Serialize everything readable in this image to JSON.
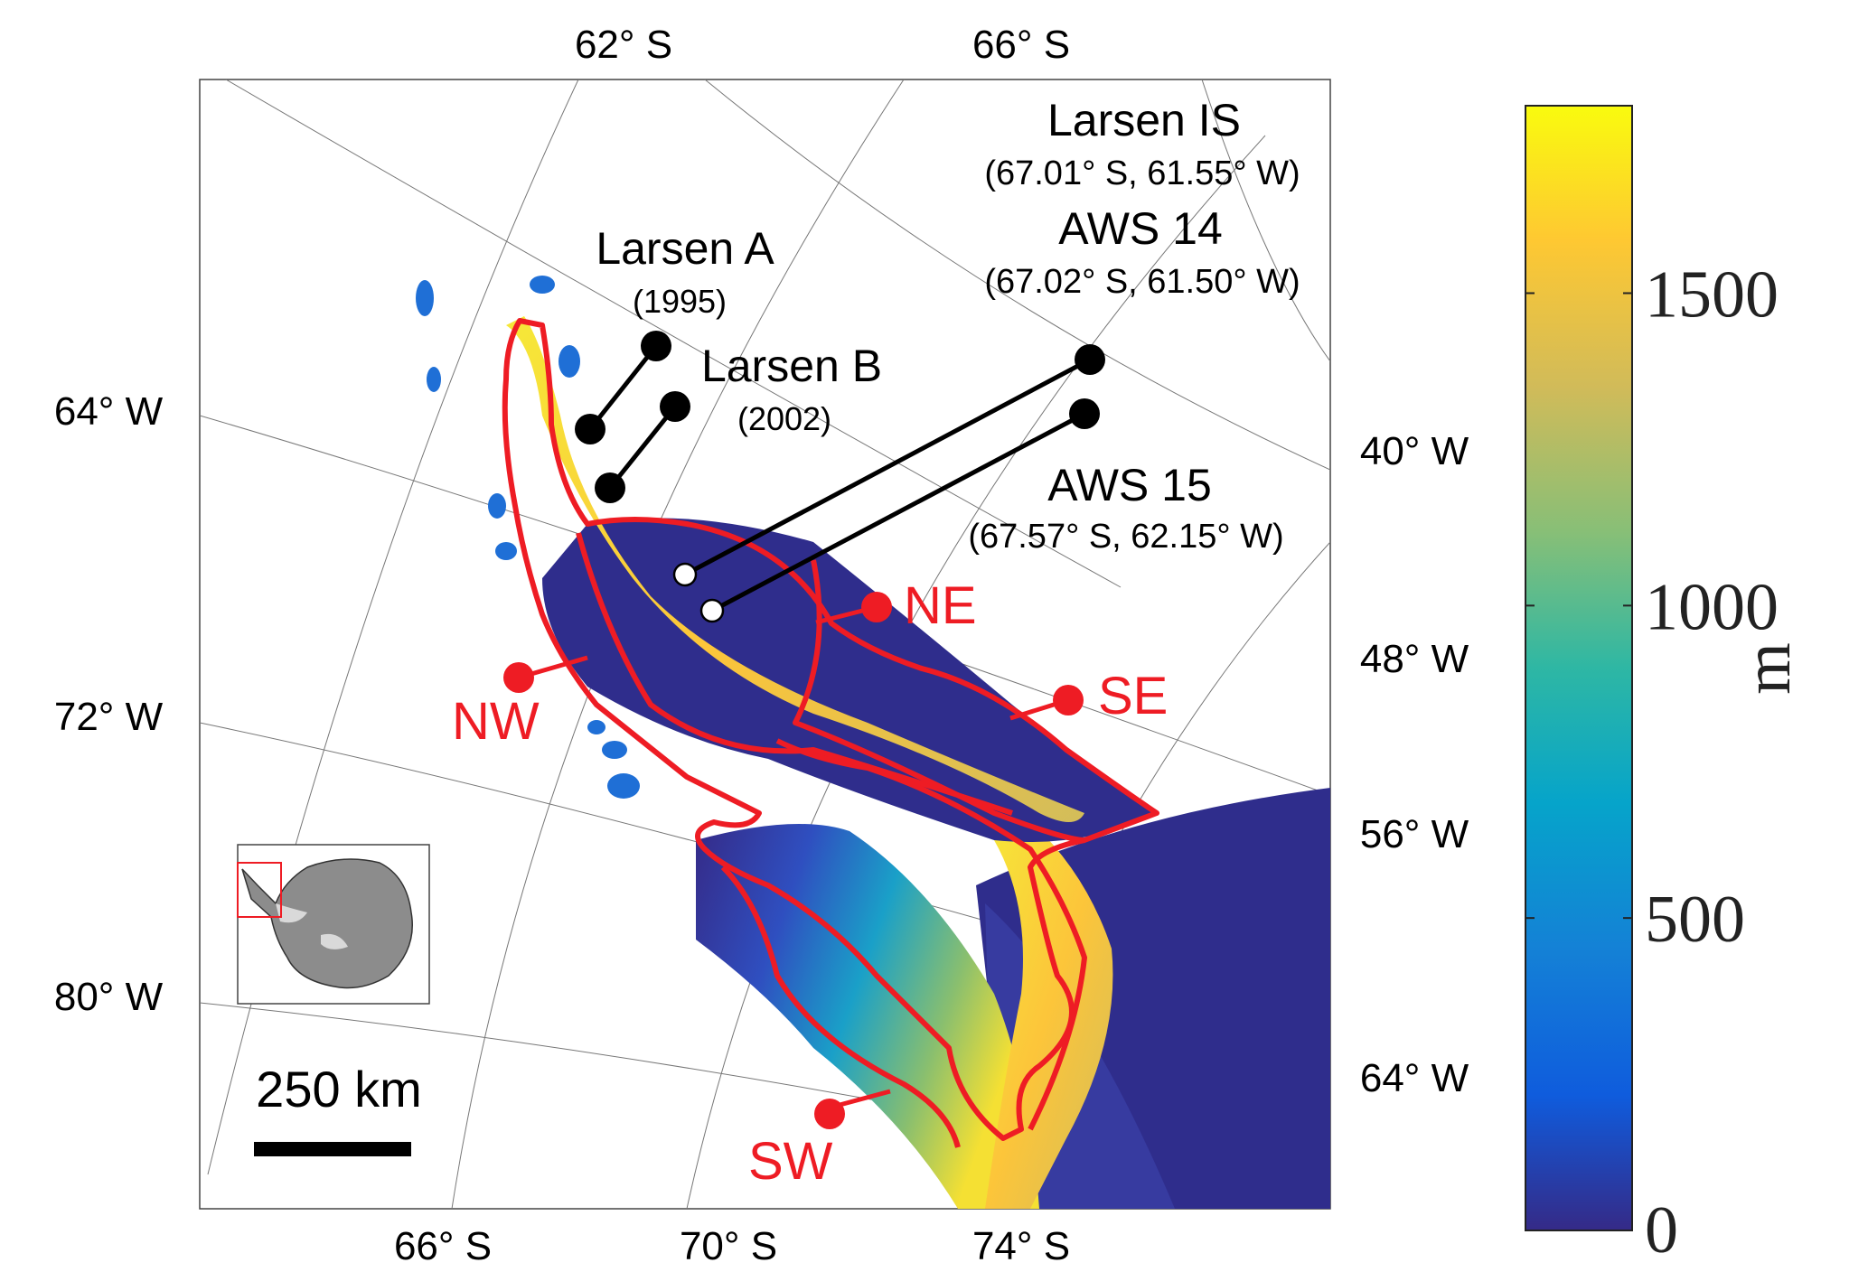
{
  "top_axis_labels": [
    "62° S",
    "66° S"
  ],
  "bottom_axis_labels": [
    "66° S",
    "70° S",
    "74° S"
  ],
  "left_axis_labels": [
    "64° W",
    "72° W",
    "80° W"
  ],
  "right_axis_labels": [
    "40° W",
    "48° W",
    "56° W",
    "64° W"
  ],
  "sites": {
    "larsen_a": {
      "name": "Larsen A",
      "year": "(1995)"
    },
    "larsen_b": {
      "name": "Larsen B",
      "year": "(2002)"
    },
    "larsen_is": {
      "name": "Larsen IS",
      "coords": "(67.01° S, 61.55° W)"
    },
    "aws14": {
      "name": "AWS 14",
      "coords": "(67.02° S, 61.50° W)"
    },
    "aws15": {
      "name": "AWS 15",
      "coords": "(67.57° S, 62.15° W)"
    }
  },
  "regions": {
    "ne": "NE",
    "nw": "NW",
    "se": "SE",
    "sw": "SW"
  },
  "scale_bar": {
    "label": "250 km",
    "length_km": 250
  },
  "colorbar": {
    "unit": "m",
    "ticks": [
      {
        "label": "0",
        "value": 0
      },
      {
        "label": "500",
        "value": 500
      },
      {
        "label": "1000",
        "value": 1000
      },
      {
        "label": "1500",
        "value": 1500
      }
    ],
    "min": 0,
    "max": 1800,
    "colormap": "parula"
  },
  "colors": {
    "boundary": "#ee1c24",
    "ocean_shelf": "#2f2d8c",
    "marker": "#000000",
    "aws_marker": "#ffffff"
  }
}
